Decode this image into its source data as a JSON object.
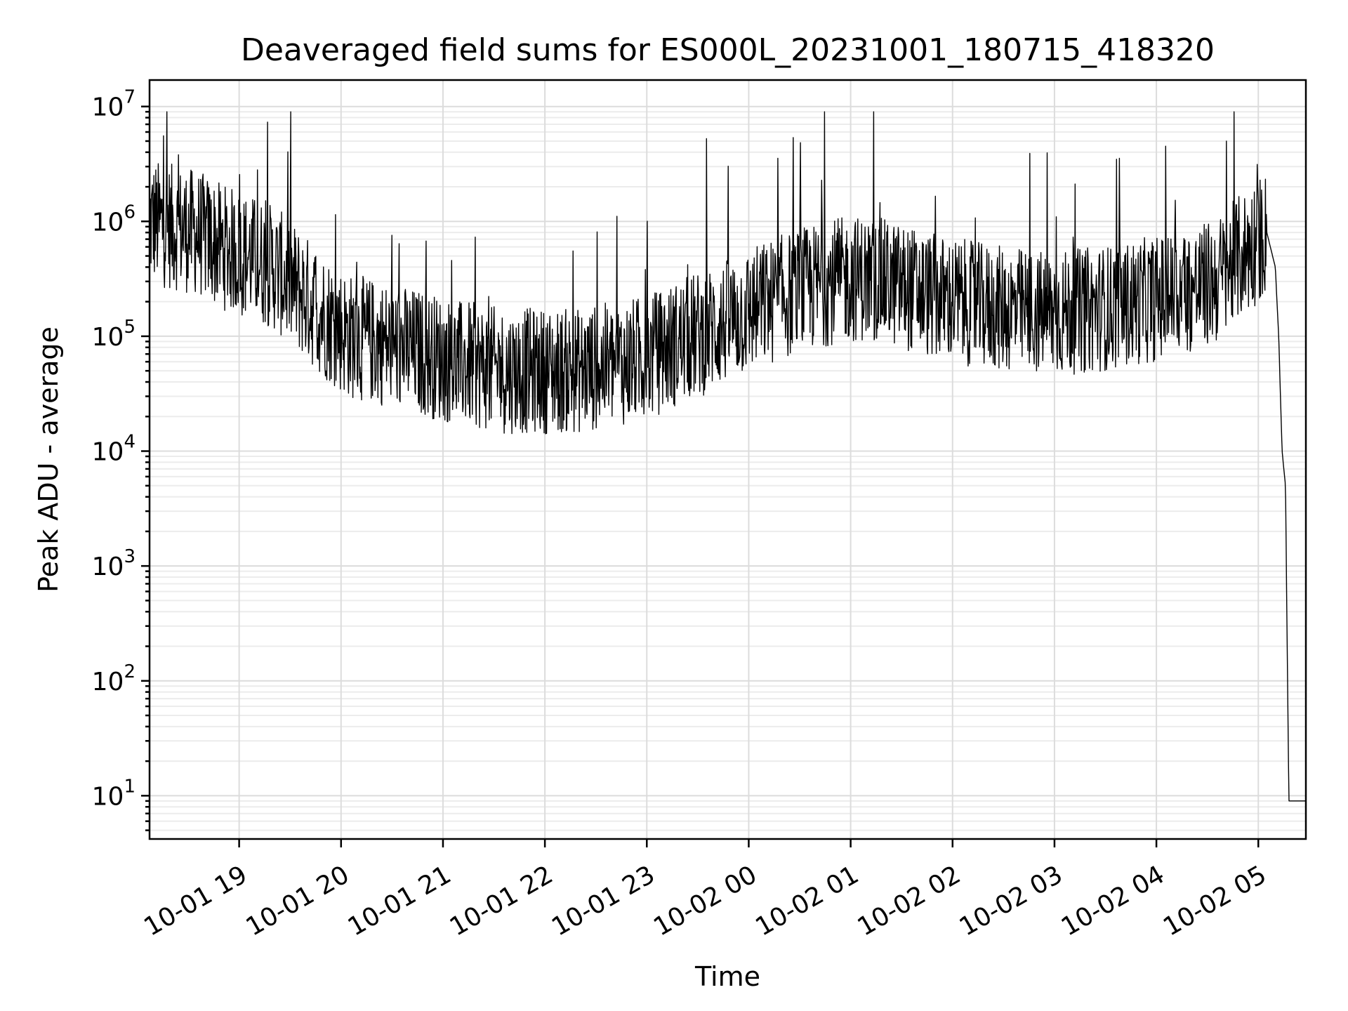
{
  "chart_data": {
    "type": "line",
    "title": "Deaveraged field sums for ES000L_20231001_180715_418320",
    "xlabel": "Time",
    "ylabel": "Peak ADU - average",
    "yscale": "log",
    "ylim": [
      4.2,
      17000000
    ],
    "xlim": [
      "2023-10-01 18:07:15",
      "2023-10-02 05:28:00"
    ],
    "grid": true,
    "x_tick_labels": [
      "10-01 19",
      "10-01 20",
      "10-01 21",
      "10-01 22",
      "10-01 23",
      "10-02 00",
      "10-02 01",
      "10-02 02",
      "10-02 03",
      "10-02 04",
      "10-02 05"
    ],
    "y_tick_labels": [
      {
        "base": "10",
        "exp": "1",
        "value": 10
      },
      {
        "base": "10",
        "exp": "2",
        "value": 100
      },
      {
        "base": "10",
        "exp": "3",
        "value": 1000
      },
      {
        "base": "10",
        "exp": "4",
        "value": 10000
      },
      {
        "base": "10",
        "exp": "5",
        "value": 100000
      },
      {
        "base": "10",
        "exp": "6",
        "value": 1000000
      },
      {
        "base": "10",
        "exp": "7",
        "value": 10000000
      }
    ],
    "series_color": "#000000",
    "series": [
      {
        "x": [
          "2023-10-01 18:07:15",
          "2023-10-01 18:20",
          "2023-10-01 18:35",
          "2023-10-01 18:50",
          "2023-10-01 19:05",
          "2023-10-01 19:20",
          "2023-10-01 19:35",
          "2023-10-01 19:50",
          "2023-10-01 20:05",
          "2023-10-01 20:20",
          "2023-10-01 20:35",
          "2023-10-01 20:50",
          "2023-10-01 21:05",
          "2023-10-01 21:20",
          "2023-10-01 21:35",
          "2023-10-01 21:50",
          "2023-10-01 22:05",
          "2023-10-01 22:20",
          "2023-10-01 22:35",
          "2023-10-01 22:50",
          "2023-10-01 23:05",
          "2023-10-01 23:20",
          "2023-10-01 23:35",
          "2023-10-01 23:50",
          "2023-10-02 00:05",
          "2023-10-02 00:20",
          "2023-10-02 00:35",
          "2023-10-02 00:50",
          "2023-10-02 01:05",
          "2023-10-02 01:20",
          "2023-10-02 01:35",
          "2023-10-02 01:50",
          "2023-10-02 02:05",
          "2023-10-02 02:20",
          "2023-10-02 02:35",
          "2023-10-02 02:50",
          "2023-10-02 03:05",
          "2023-10-02 03:20",
          "2023-10-02 03:35",
          "2023-10-02 03:50",
          "2023-10-02 04:05",
          "2023-10-02 04:20",
          "2023-10-02 04:35",
          "2023-10-02 04:50",
          "2023-10-02 05:05",
          "2023-10-02 05:10",
          "2023-10-02 05:12",
          "2023-10-02 05:14",
          "2023-10-02 05:16",
          "2023-10-02 05:18",
          "2023-10-02 05:28"
        ],
        "y": [
          1000000,
          900000,
          800000,
          600000,
          500000,
          400000,
          250000,
          150000,
          100000,
          90000,
          80000,
          70000,
          60000,
          55000,
          50000,
          50000,
          50000,
          50000,
          55000,
          60000,
          70000,
          90000,
          110000,
          140000,
          180000,
          220000,
          260000,
          300000,
          320000,
          300000,
          260000,
          220000,
          200000,
          180000,
          170000,
          160000,
          160000,
          170000,
          180000,
          200000,
          220000,
          250000,
          300000,
          500000,
          800000,
          400000,
          100000,
          10000,
          5000,
          9,
          9
        ]
      }
    ]
  }
}
